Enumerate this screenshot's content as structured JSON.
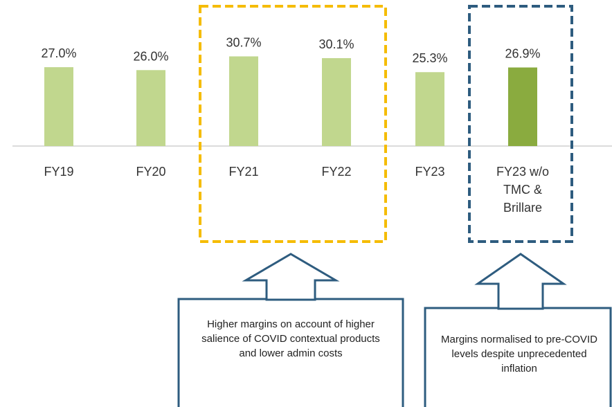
{
  "chart_data": {
    "type": "bar",
    "categories": [
      "FY19",
      "FY20",
      "FY21",
      "FY22",
      "FY23",
      "FY23 w/o TMC & Brillare"
    ],
    "values": [
      27.0,
      26.0,
      30.7,
      30.1,
      25.3,
      26.9
    ],
    "value_labels": [
      "27.0%",
      "26.0%",
      "30.7%",
      "30.1%",
      "25.3%",
      "26.9%"
    ],
    "colors": [
      "#c1d78e",
      "#c1d78e",
      "#c1d78e",
      "#c1d78e",
      "#c1d78e",
      "#8aab3f"
    ],
    "ylim": [
      0,
      50
    ],
    "annotations": [
      "Higher margins on account of higher salience of COVID contextual products and lower admin costs",
      "Margins normalised to pre-COVID levels despite unprecedented inflation"
    ]
  }
}
